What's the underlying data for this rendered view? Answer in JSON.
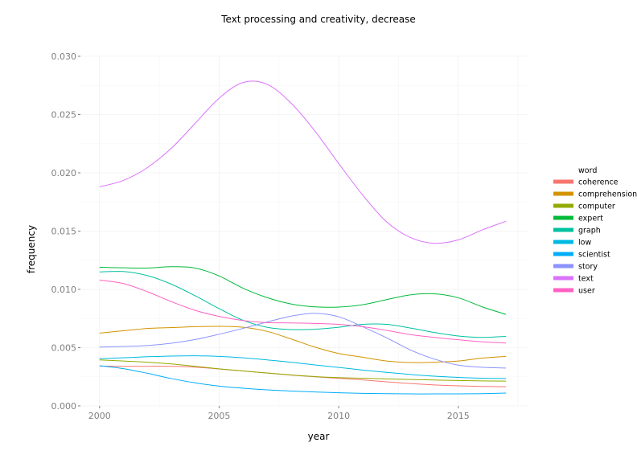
{
  "chart_data": {
    "type": "line",
    "title": "Text processing and creativity, decrease",
    "xlabel": "year",
    "ylabel": "frequency",
    "xlim": [
      1999.2,
      2017.9
    ],
    "ylim": [
      0,
      0.03
    ],
    "xticks": [
      2000,
      2005,
      2010,
      2015
    ],
    "xtick_labels": [
      "2000",
      "2005",
      "2010",
      "2015"
    ],
    "yticks": [
      0,
      0.005,
      0.01,
      0.015,
      0.02,
      0.025,
      0.03
    ],
    "ytick_labels": [
      "0.000",
      "0.005",
      "0.010",
      "0.015",
      "0.020",
      "0.025",
      "0.030"
    ],
    "grid": true,
    "legend_title": "word",
    "legend_position": "right",
    "x": [
      2000,
      2001,
      2002,
      2003,
      2004,
      2005,
      2006,
      2007,
      2008,
      2009,
      2010,
      2011,
      2012,
      2013,
      2014,
      2015,
      2016,
      2017
    ],
    "series": [
      {
        "name": "coherence",
        "color": "#F8766D",
        "values": [
          0.00342,
          0.0034,
          0.0034,
          0.0034,
          0.00333,
          0.00317,
          0.003,
          0.00283,
          0.00265,
          0.0025,
          0.00237,
          0.00223,
          0.00207,
          0.00192,
          0.0018,
          0.00172,
          0.00167,
          0.00165
        ]
      },
      {
        "name": "comprehension",
        "color": "#D39200",
        "values": [
          0.00625,
          0.00645,
          0.00665,
          0.00672,
          0.0068,
          0.00683,
          0.00675,
          0.0064,
          0.00575,
          0.00505,
          0.0045,
          0.00418,
          0.00385,
          0.00372,
          0.00375,
          0.00385,
          0.0041,
          0.00425
        ]
      },
      {
        "name": "computer",
        "color": "#93AA00",
        "values": [
          0.00395,
          0.00385,
          0.00375,
          0.0036,
          0.0034,
          0.00318,
          0.003,
          0.00282,
          0.00266,
          0.00252,
          0.00243,
          0.00238,
          0.00232,
          0.00227,
          0.00222,
          0.00218,
          0.00215,
          0.00213
        ]
      },
      {
        "name": "expert",
        "color": "#00BA38",
        "values": [
          0.0119,
          0.01185,
          0.01183,
          0.01195,
          0.01183,
          0.01115,
          0.0101,
          0.0093,
          0.00875,
          0.0085,
          0.00848,
          0.00868,
          0.00912,
          0.00953,
          0.00962,
          0.00928,
          0.0085,
          0.00785
        ]
      },
      {
        "name": "graph",
        "color": "#00C19F",
        "values": [
          0.0115,
          0.01153,
          0.01118,
          0.01045,
          0.00945,
          0.00835,
          0.00735,
          0.00675,
          0.00655,
          0.00658,
          0.00675,
          0.007,
          0.007,
          0.00668,
          0.0063,
          0.006,
          0.00588,
          0.00597
        ]
      },
      {
        "name": "low",
        "color": "#00B9E3",
        "values": [
          0.00405,
          0.00413,
          0.00422,
          0.00428,
          0.0043,
          0.00425,
          0.00413,
          0.00395,
          0.00375,
          0.00352,
          0.0033,
          0.00308,
          0.00288,
          0.0027,
          0.00255,
          0.00245,
          0.00238,
          0.00235
        ]
      },
      {
        "name": "scientist",
        "color": "#00ADFA",
        "values": [
          0.00345,
          0.0032,
          0.0028,
          0.00235,
          0.00198,
          0.0017,
          0.00152,
          0.00138,
          0.00128,
          0.0012,
          0.00113,
          0.00108,
          0.00105,
          0.00103,
          0.00103,
          0.00103,
          0.00105,
          0.0011
        ]
      },
      {
        "name": "story",
        "color": "#8B93FF",
        "values": [
          0.00505,
          0.0051,
          0.00518,
          0.00538,
          0.0057,
          0.00615,
          0.00665,
          0.0072,
          0.0077,
          0.00795,
          0.00765,
          0.0068,
          0.00585,
          0.0048,
          0.00402,
          0.0035,
          0.00332,
          0.00325
        ]
      },
      {
        "name": "text",
        "color": "#DB72FB",
        "values": [
          0.0188,
          0.01935,
          0.02045,
          0.0221,
          0.02425,
          0.0264,
          0.02775,
          0.0276,
          0.026,
          0.0236,
          0.0208,
          0.0181,
          0.0158,
          0.01445,
          0.01395,
          0.01425,
          0.0151,
          0.01585
        ]
      },
      {
        "name": "user",
        "color": "#FF61C3",
        "values": [
          0.0108,
          0.0105,
          0.0098,
          0.00895,
          0.0082,
          0.00768,
          0.00733,
          0.00715,
          0.00712,
          0.00708,
          0.007,
          0.0068,
          0.00648,
          0.00612,
          0.00588,
          0.00568,
          0.0055,
          0.0054
        ]
      }
    ]
  }
}
